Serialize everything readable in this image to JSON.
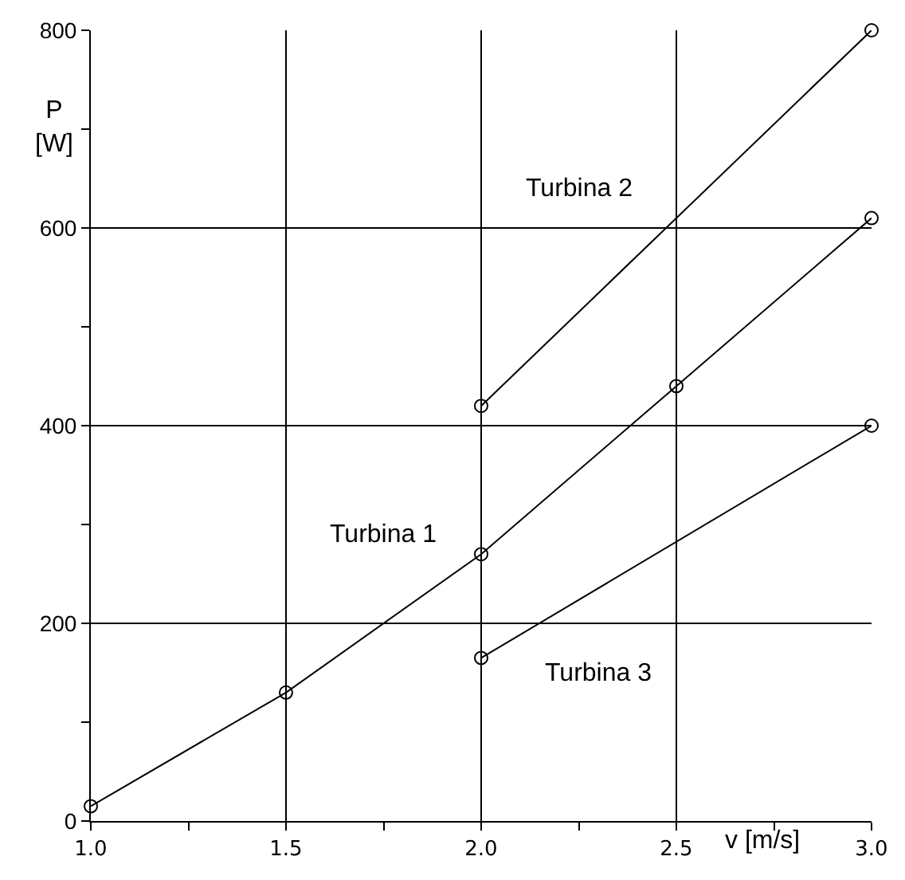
{
  "chart_data": {
    "type": "line",
    "xlabel": "v [m/s]",
    "ylabel": "P\n[W]",
    "series": [
      {
        "name": "Turbina 1",
        "color": "#000000",
        "x": [
          1.0,
          1.5,
          2.0,
          2.5,
          3.0
        ],
        "values": [
          15,
          130,
          270,
          440,
          610
        ]
      },
      {
        "name": "Turbina 2",
        "color": "#000000",
        "x": [
          2.0,
          3.0
        ],
        "values": [
          420,
          800
        ]
      },
      {
        "name": "Turbina 3",
        "color": "#000000",
        "x": [
          2.0,
          3.0
        ],
        "values": [
          165,
          400
        ]
      }
    ],
    "xlim": [
      1.0,
      3.0
    ],
    "ylim": [
      0,
      800
    ],
    "xticks": [
      {
        "value": 1.0,
        "label": "1.0"
      },
      {
        "value": 1.5,
        "label": "1.5"
      },
      {
        "value": 2.0,
        "label": "2.0"
      },
      {
        "value": 2.5,
        "label": "2.5"
      },
      {
        "value": 3.0,
        "label": "3.0"
      }
    ],
    "yticks": [
      0,
      200,
      400,
      600,
      800
    ],
    "grid": true,
    "legend": false,
    "marker": "circle",
    "line_style": "solid"
  }
}
